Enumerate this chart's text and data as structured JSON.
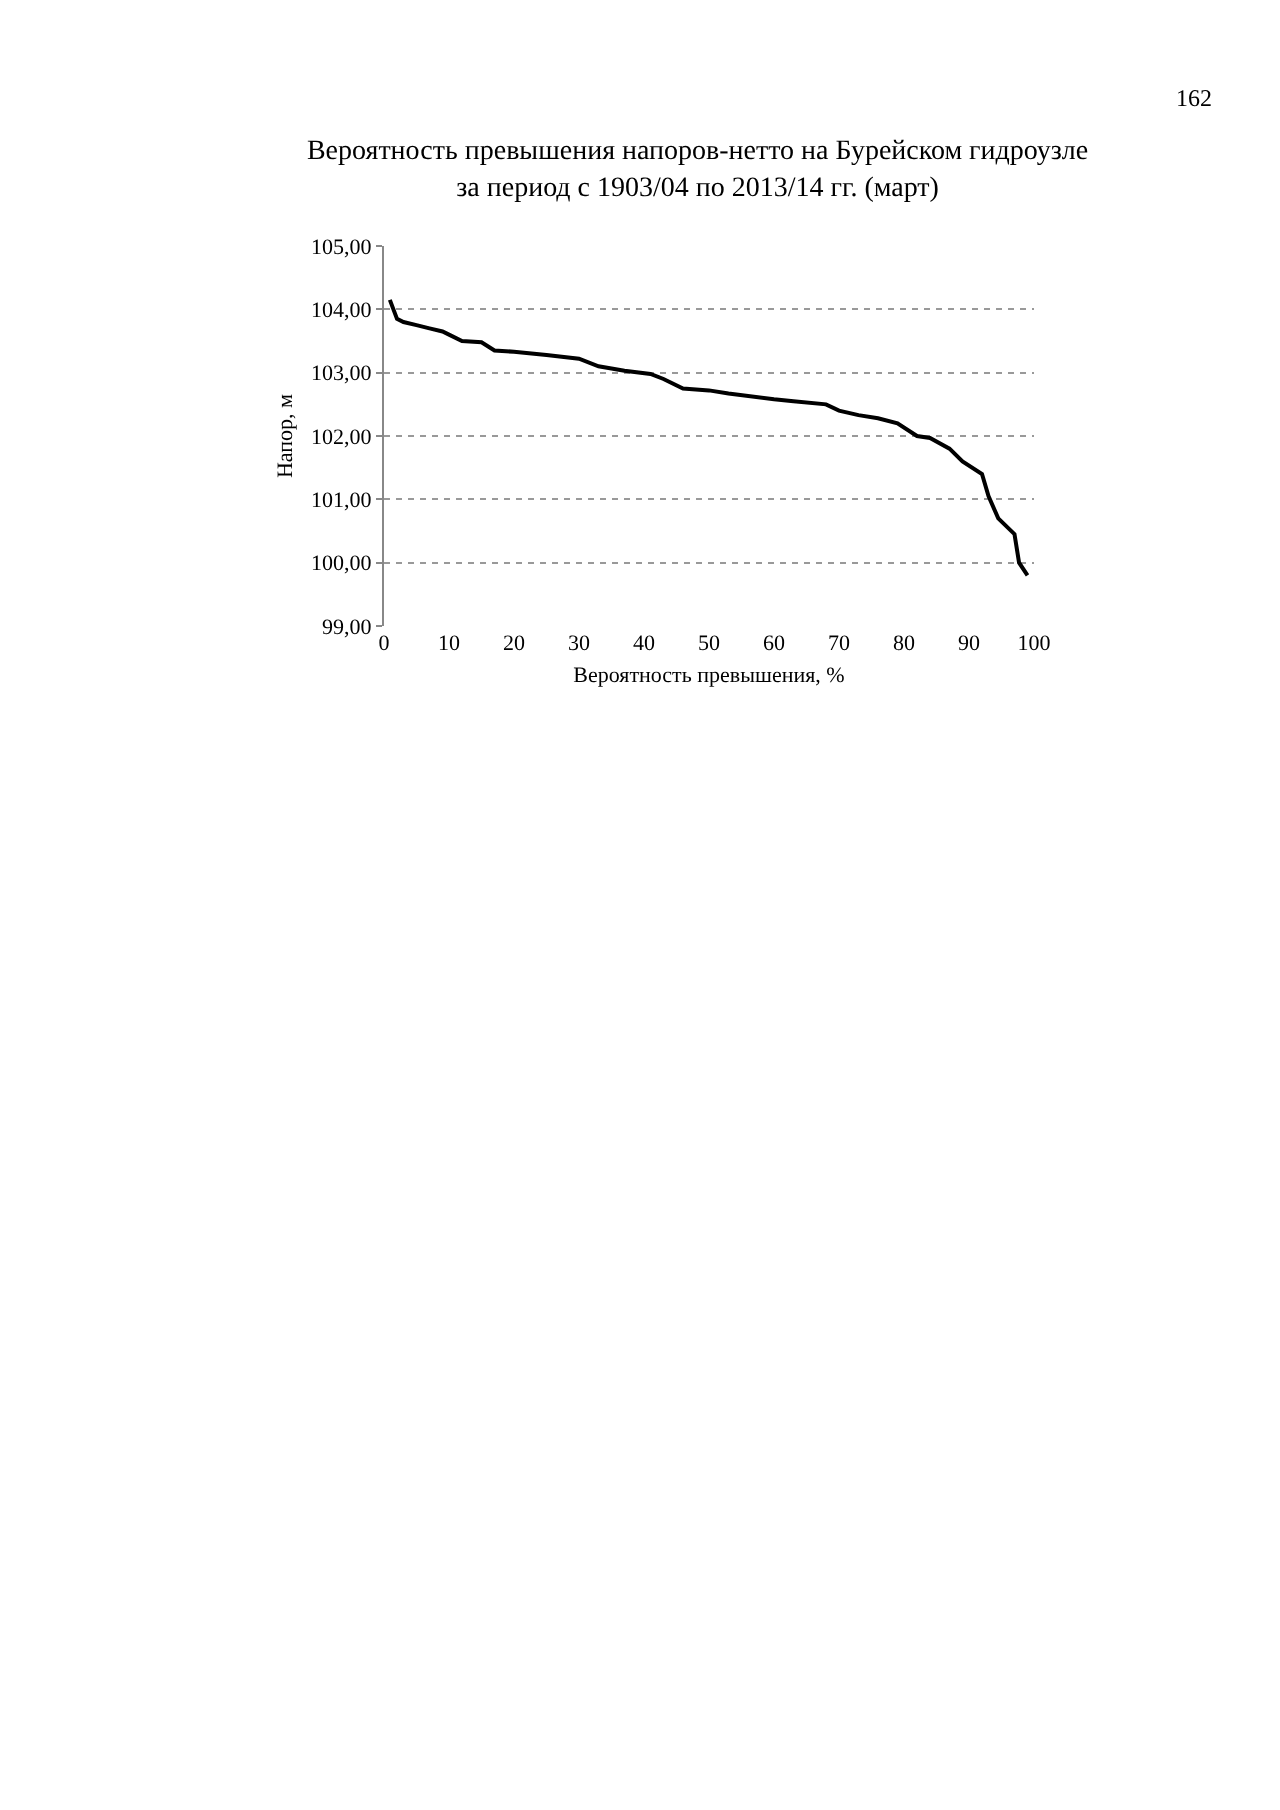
{
  "chart_data": {
    "type": "line",
    "title": "Вероятность превышения напоров-нетто на Бурейском гидроузле\nза период с 1903/04 по 2013/14 гг. (март)",
    "xlabel": "Вероятность превышения, %",
    "ylabel": "Напор, м",
    "annotations": [
      "162"
    ],
    "x": [
      0.9,
      2,
      3,
      5,
      7,
      9,
      10,
      12,
      15,
      17,
      20,
      25,
      30,
      33,
      37,
      41,
      43,
      46,
      50,
      53,
      60,
      63,
      68,
      70,
      73,
      76,
      79,
      82,
      84,
      87,
      89,
      92,
      93,
      94.5,
      97,
      97.7,
      99
    ],
    "series": [
      {
        "color": "#000000",
        "values": [
          104.15,
          103.85,
          103.8,
          103.75,
          103.7,
          103.65,
          103.6,
          103.5,
          103.48,
          103.35,
          103.33,
          103.28,
          103.22,
          103.1,
          103.03,
          102.98,
          102.9,
          102.75,
          102.72,
          102.67,
          102.58,
          102.55,
          102.5,
          102.4,
          102.33,
          102.28,
          102.2,
          102.0,
          101.97,
          101.8,
          101.6,
          101.4,
          101.05,
          100.7,
          100.45,
          100.0,
          99.8
        ]
      }
    ],
    "xlim": [
      0,
      100
    ],
    "xticks": [
      0,
      10,
      20,
      30,
      40,
      50,
      60,
      70,
      80,
      90,
      100
    ],
    "ylim": [
      99,
      105
    ],
    "yticks": [
      {
        "value": 99,
        "label": "99,00"
      },
      {
        "value": 100,
        "label": "100,00"
      },
      {
        "value": 101,
        "label": "101,00"
      },
      {
        "value": 102,
        "label": "102,00"
      },
      {
        "value": 103,
        "label": "103,00"
      },
      {
        "value": 104,
        "label": "104,00"
      },
      {
        "value": 105,
        "label": "105,00"
      }
    ],
    "grid": "y",
    "marker": "none",
    "line_style": "solid"
  }
}
